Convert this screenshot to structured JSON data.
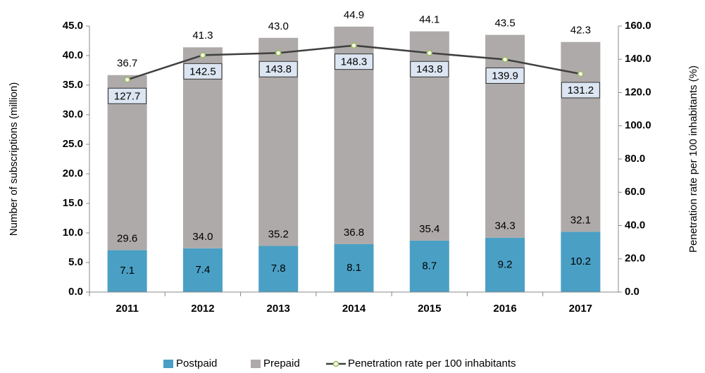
{
  "chart_data": {
    "type": "bar",
    "categories": [
      "2011",
      "2012",
      "2013",
      "2014",
      "2015",
      "2016",
      "2017"
    ],
    "series": [
      {
        "name": "Postpaid",
        "color": "#4a9fc4",
        "values": [
          7.1,
          7.4,
          7.8,
          8.1,
          8.7,
          9.2,
          10.2
        ],
        "value_labels": [
          "7.1",
          "7.4",
          "7.8",
          "8.1",
          "8.7",
          "9.2",
          "10.2"
        ]
      },
      {
        "name": "Prepaid",
        "color": "#aeaaa9",
        "values": [
          29.6,
          34,
          35.2,
          36.8,
          35.4,
          34.3,
          32.1
        ],
        "value_labels": [
          "29.6",
          "34.0",
          "35.2",
          "36.8",
          "35.4",
          "34.3",
          "32.1"
        ]
      },
      {
        "name": "Penetration rate per 100 inhabitants",
        "type": "line",
        "axis": "y2",
        "color": "#404040",
        "marker_color": "#9bbb59",
        "values": [
          127.7,
          142.5,
          143.8,
          148.3,
          143.8,
          139.9,
          131.2
        ],
        "value_labels": [
          "127.7",
          "142.5",
          "143.8",
          "148.3",
          "143.8",
          "139.9",
          "131.2"
        ]
      }
    ],
    "totals": [
      "36.7",
      "41.3",
      "43.0",
      "44.9",
      "44.1",
      "43.5",
      "42.3"
    ],
    "ylabel": "Number of subscriptions (million)",
    "y2label": "Penetration rate per 100 inhabitants (%)",
    "ylim": [
      0,
      45
    ],
    "yticks": [
      {
        "value": 0,
        "label": "0.0"
      },
      {
        "value": 5,
        "label": "5.0"
      },
      {
        "value": 10,
        "label": "10.0"
      },
      {
        "value": 15,
        "label": "15.0"
      },
      {
        "value": 20,
        "label": "20.0"
      },
      {
        "value": 25,
        "label": "25.0"
      },
      {
        "value": 30,
        "label": "30.0"
      },
      {
        "value": 35,
        "label": "35.0"
      },
      {
        "value": 40,
        "label": "40.0"
      },
      {
        "value": 45,
        "label": "45.0"
      }
    ],
    "y2lim": [
      0,
      160
    ],
    "y2ticks": [
      {
        "value": 0,
        "label": "0.0"
      },
      {
        "value": 20,
        "label": "20.0"
      },
      {
        "value": 40,
        "label": "40.0"
      },
      {
        "value": 60,
        "label": "60.0"
      },
      {
        "value": 80,
        "label": "80.0"
      },
      {
        "value": 100,
        "label": "100.0"
      },
      {
        "value": 120,
        "label": "120.0"
      },
      {
        "value": 140,
        "label": "140.0"
      },
      {
        "value": 160,
        "label": "160.0"
      }
    ],
    "legend": "bottom"
  }
}
